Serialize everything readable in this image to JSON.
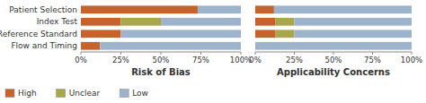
{
  "chart_data": [
    {
      "type": "bar",
      "orientation": "horizontal",
      "stacked": true,
      "categories": [
        "Patient Selection",
        "Index Test",
        "Reference Standard",
        "Flow and Timing"
      ],
      "series": [
        {
          "name": "High",
          "color": "#c8622a",
          "values": [
            73,
            25,
            25,
            12
          ]
        },
        {
          "name": "Unclear",
          "color": "#a8a84a",
          "values": [
            0,
            25,
            0,
            0
          ]
        },
        {
          "name": "Low",
          "color": "#9db3cc",
          "values": [
            27,
            50,
            75,
            88
          ]
        }
      ],
      "x_label": "Risk of Bias",
      "xlim": [
        0,
        100
      ],
      "xticks": [
        {
          "value": 0,
          "label": "0%"
        },
        {
          "value": 25,
          "label": "25%"
        },
        {
          "value": 50,
          "label": "50%"
        },
        {
          "value": 75,
          "label": "75%"
        },
        {
          "value": 100,
          "label": "100%"
        }
      ],
      "legend": "bottom",
      "grid": false
    },
    {
      "type": "bar",
      "orientation": "horizontal",
      "stacked": true,
      "categories": [
        "Patient Selection",
        "Index Test",
        "Reference Standard",
        "Flow and Timing"
      ],
      "series": [
        {
          "name": "High",
          "color": "#c8622a",
          "values": [
            12,
            13,
            13,
            0
          ]
        },
        {
          "name": "Unclear",
          "color": "#a8a84a",
          "values": [
            0,
            12,
            12,
            0
          ]
        },
        {
          "name": "Low",
          "color": "#9db3cc",
          "values": [
            88,
            75,
            75,
            100
          ]
        }
      ],
      "x_label": "Applicability Concerns",
      "xlim": [
        0,
        100
      ],
      "xticks": [
        {
          "value": 0,
          "label": "0%"
        },
        {
          "value": 25,
          "label": "25%"
        },
        {
          "value": 50,
          "label": "50%"
        },
        {
          "value": 75,
          "label": "75%"
        },
        {
          "value": 100,
          "label": "100%"
        }
      ],
      "tick_labels": "x",
      "grid": false
    }
  ]
}
